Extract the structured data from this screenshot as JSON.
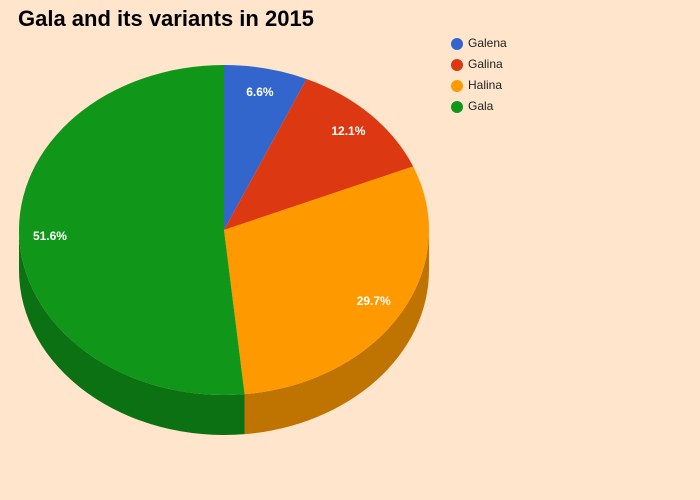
{
  "chart_data": {
    "type": "pie",
    "title": "Gala and its variants in 2015",
    "categories": [
      "Galena",
      "Galina",
      "Halina",
      "Gala"
    ],
    "values": [
      6.6,
      12.1,
      29.7,
      51.6
    ],
    "value_labels": [
      "6.6%",
      "12.1%",
      "29.7%",
      "51.6%"
    ],
    "colors": [
      "#3366cc",
      "#dc3912",
      "#ff9900",
      "#109618"
    ],
    "legend": "top-right"
  }
}
